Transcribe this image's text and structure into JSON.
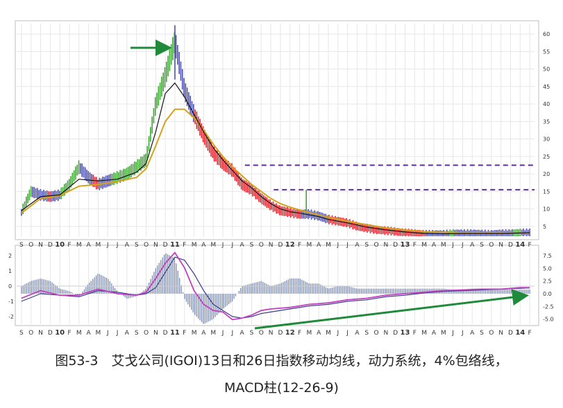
{
  "caption": {
    "line1": "图53-3　艾戈公司(IGOI)13日和26日指数移动均线，动力系统，4%包络线，",
    "line2": "MACD柱(12-26-9)"
  },
  "colors": {
    "up_bar": "#3fa535",
    "down_bar": "#e8202a",
    "neutral_bar": "#4b4fb0",
    "ema13": "#111111",
    "ema26": "#d4a21c",
    "macd_line": "#c040c0",
    "signal_line": "#3a3a8a",
    "histogram": "#7a8ab0",
    "resistance": "#5b2ca0",
    "arrow": "#1f8a3a",
    "grid": "#e6e6e6"
  },
  "chart_data": [
    {
      "type": "line",
      "panel": "price",
      "y_ticks": [
        "5",
        "10",
        "15",
        "20",
        "25",
        "30",
        "35",
        "40",
        "45",
        "50",
        "55",
        "60"
      ],
      "ylim": [
        2,
        63
      ],
      "x_months": [
        "S",
        "O",
        "N",
        "D",
        "10",
        "F",
        "M",
        "A",
        "M",
        "J",
        "J",
        "A",
        "S",
        "O",
        "N",
        "D",
        "11",
        "F",
        "M",
        "A",
        "M",
        "J",
        "J",
        "A",
        "S",
        "O",
        "N",
        "D",
        "12",
        "F",
        "M",
        "A",
        "M",
        "J",
        "J",
        "A",
        "S",
        "O",
        "N",
        "D",
        "13",
        "F",
        "M",
        "A",
        "M",
        "J",
        "J",
        "A",
        "S",
        "O",
        "N",
        "D",
        "14",
        "F"
      ],
      "price_path": [
        [
          0,
          9
        ],
        [
          1,
          15
        ],
        [
          2,
          14
        ],
        [
          3,
          13.5
        ],
        [
          4,
          14
        ],
        [
          5,
          17
        ],
        [
          6,
          22
        ],
        [
          7,
          19
        ],
        [
          8,
          17
        ],
        [
          9,
          18
        ],
        [
          10,
          19
        ],
        [
          11,
          20
        ],
        [
          12,
          22
        ],
        [
          13,
          24
        ],
        [
          14,
          40
        ],
        [
          15,
          48
        ],
        [
          16,
          58
        ],
        [
          17,
          44
        ],
        [
          18,
          37
        ],
        [
          19,
          31
        ],
        [
          20,
          26
        ],
        [
          21,
          23
        ],
        [
          22,
          21
        ],
        [
          23,
          17
        ],
        [
          24,
          15.5
        ],
        [
          25,
          13
        ],
        [
          26,
          11
        ],
        [
          27,
          9.5
        ],
        [
          28,
          9
        ],
        [
          29,
          8.5
        ],
        [
          30,
          8.5
        ],
        [
          31,
          8
        ],
        [
          32,
          7
        ],
        [
          33,
          6.5
        ],
        [
          34,
          6
        ],
        [
          35,
          5
        ],
        [
          36,
          4.5
        ],
        [
          37,
          4
        ],
        [
          38,
          3.8
        ],
        [
          39,
          3.5
        ],
        [
          40,
          3.2
        ],
        [
          41,
          3
        ],
        [
          42,
          2.8
        ],
        [
          43,
          2.8
        ],
        [
          44,
          2.8
        ],
        [
          45,
          3
        ],
        [
          46,
          3
        ],
        [
          47,
          3
        ],
        [
          48,
          2.9
        ],
        [
          49,
          2.8
        ],
        [
          50,
          3
        ],
        [
          51,
          3
        ],
        [
          52,
          3.2
        ],
        [
          53,
          3.2
        ]
      ],
      "ema13": [
        [
          0,
          9.5
        ],
        [
          2,
          13.5
        ],
        [
          4,
          14
        ],
        [
          6,
          18.5
        ],
        [
          8,
          18
        ],
        [
          10,
          18.5
        ],
        [
          12,
          20.5
        ],
        [
          13,
          23
        ],
        [
          14,
          32
        ],
        [
          15,
          43
        ],
        [
          16,
          46
        ],
        [
          17,
          42
        ],
        [
          18,
          37
        ],
        [
          19,
          32
        ],
        [
          20,
          27.5
        ],
        [
          21,
          24
        ],
        [
          22,
          21
        ],
        [
          23,
          18
        ],
        [
          24,
          16
        ],
        [
          25,
          13.5
        ],
        [
          26,
          11.5
        ],
        [
          27,
          10
        ],
        [
          28,
          9.2
        ],
        [
          29,
          8.8
        ],
        [
          30,
          8.3
        ],
        [
          31,
          7.8
        ],
        [
          32,
          7
        ],
        [
          34,
          6
        ],
        [
          36,
          4.8
        ],
        [
          38,
          4
        ],
        [
          40,
          3.4
        ],
        [
          42,
          3
        ],
        [
          44,
          2.9
        ],
        [
          46,
          3
        ],
        [
          48,
          3
        ],
        [
          50,
          3
        ],
        [
          52,
          3.1
        ],
        [
          53,
          3.2
        ]
      ],
      "ema26": [
        [
          0,
          8.8
        ],
        [
          2,
          13
        ],
        [
          4,
          13.8
        ],
        [
          6,
          16.5
        ],
        [
          8,
          17
        ],
        [
          10,
          17.8
        ],
        [
          12,
          19
        ],
        [
          13,
          21.5
        ],
        [
          14,
          28
        ],
        [
          15,
          35
        ],
        [
          16,
          38.5
        ],
        [
          17,
          38.5
        ],
        [
          18,
          36
        ],
        [
          19,
          32.5
        ],
        [
          20,
          28.5
        ],
        [
          21,
          25
        ],
        [
          22,
          22
        ],
        [
          23,
          19.5
        ],
        [
          24,
          17
        ],
        [
          25,
          15
        ],
        [
          26,
          13
        ],
        [
          27,
          11.5
        ],
        [
          28,
          10.5
        ],
        [
          29,
          9.7
        ],
        [
          30,
          9
        ],
        [
          31,
          8.3
        ],
        [
          32,
          7.6
        ],
        [
          34,
          6.5
        ],
        [
          36,
          5.5
        ],
        [
          38,
          4.6
        ],
        [
          40,
          4
        ],
        [
          42,
          3.5
        ],
        [
          44,
          3.3
        ],
        [
          46,
          3.2
        ],
        [
          48,
          3.2
        ],
        [
          50,
          3.2
        ],
        [
          52,
          3.2
        ],
        [
          53,
          3.2
        ]
      ],
      "resistance_levels": [
        22.5,
        15.5
      ],
      "series": [
        {
          "name": "",
          "role": "13-day EMA"
        },
        {
          "name": "",
          "role": "26-day EMA"
        }
      ]
    },
    {
      "type": "bar",
      "panel": "macd",
      "left_ticks": [
        "2",
        "1",
        "0",
        "-1",
        "-2"
      ],
      "right_ticks": [
        "7.5",
        "5.0",
        "2.5",
        "0.0",
        "-2.5",
        "-5.0"
      ],
      "hist_ylim": [
        -6,
        9
      ],
      "line_ylim": [
        -2.5,
        2.5
      ],
      "histogram": [
        [
          0,
          1.5
        ],
        [
          1,
          2.5
        ],
        [
          2,
          3
        ],
        [
          3,
          2.5
        ],
        [
          4,
          1
        ],
        [
          5,
          0.5
        ],
        [
          6,
          -0.5
        ],
        [
          7,
          2
        ],
        [
          8,
          4
        ],
        [
          9,
          3
        ],
        [
          10,
          0.5
        ],
        [
          11,
          -1
        ],
        [
          12,
          -0.5
        ],
        [
          13,
          1
        ],
        [
          14,
          5
        ],
        [
          15,
          8
        ],
        [
          16,
          7
        ],
        [
          17,
          -1
        ],
        [
          18,
          -4
        ],
        [
          19,
          -6
        ],
        [
          20,
          -5
        ],
        [
          21,
          -3
        ],
        [
          22,
          -1.5
        ],
        [
          23,
          1.5
        ],
        [
          24,
          2
        ],
        [
          25,
          2.5
        ],
        [
          26,
          1.5
        ],
        [
          27,
          2
        ],
        [
          28,
          3
        ],
        [
          29,
          3
        ],
        [
          30,
          2
        ],
        [
          31,
          2
        ],
        [
          32,
          1
        ],
        [
          33,
          1.5
        ],
        [
          34,
          1.5
        ],
        [
          35,
          1
        ],
        [
          36,
          1
        ],
        [
          37,
          1
        ],
        [
          38,
          1
        ],
        [
          39,
          1
        ],
        [
          40,
          1
        ],
        [
          41,
          1
        ],
        [
          42,
          1
        ],
        [
          43,
          1
        ],
        [
          44,
          1
        ],
        [
          45,
          0.8
        ],
        [
          46,
          0.8
        ],
        [
          47,
          1
        ],
        [
          48,
          1
        ],
        [
          49,
          0.8
        ],
        [
          50,
          1
        ],
        [
          51,
          0.8
        ],
        [
          52,
          0.8
        ],
        [
          53,
          0.8
        ]
      ],
      "macd_line": [
        [
          0,
          -0.8
        ],
        [
          2,
          -0.3
        ],
        [
          4,
          -0.6
        ],
        [
          6,
          -0.6
        ],
        [
          8,
          -0.2
        ],
        [
          10,
          -0.5
        ],
        [
          12,
          -0.6
        ],
        [
          13,
          -0.4
        ],
        [
          14,
          0.5
        ],
        [
          15,
          1.5
        ],
        [
          16,
          2.2
        ],
        [
          17,
          1.2
        ],
        [
          18,
          -0.3
        ],
        [
          19,
          -1.2
        ],
        [
          20,
          -1.6
        ],
        [
          21,
          -1.7
        ],
        [
          22,
          -2.2
        ],
        [
          23,
          -2.1
        ],
        [
          24,
          -1.9
        ],
        [
          25,
          -1.6
        ],
        [
          26,
          -1.5
        ],
        [
          28,
          -1.4
        ],
        [
          30,
          -1.2
        ],
        [
          32,
          -1.1
        ],
        [
          34,
          -0.9
        ],
        [
          36,
          -0.8
        ],
        [
          38,
          -0.6
        ],
        [
          40,
          -0.5
        ],
        [
          42,
          -0.4
        ],
        [
          44,
          -0.3
        ],
        [
          46,
          -0.25
        ],
        [
          48,
          -0.2
        ],
        [
          50,
          -0.2
        ],
        [
          52,
          -0.1
        ],
        [
          53,
          -0.1
        ]
      ],
      "signal_line": [
        [
          0,
          -1
        ],
        [
          2,
          -0.5
        ],
        [
          4,
          -0.6
        ],
        [
          6,
          -0.7
        ],
        [
          8,
          -0.3
        ],
        [
          10,
          -0.4
        ],
        [
          12,
          -0.6
        ],
        [
          13,
          -0.5
        ],
        [
          14,
          -0.1
        ],
        [
          15,
          0.9
        ],
        [
          16,
          1.9
        ],
        [
          17,
          1.7
        ],
        [
          18,
          0.8
        ],
        [
          19,
          -0.3
        ],
        [
          20,
          -1.2
        ],
        [
          21,
          -1.6
        ],
        [
          22,
          -2
        ],
        [
          23,
          -2.1
        ],
        [
          24,
          -2
        ],
        [
          25,
          -1.8
        ],
        [
          26,
          -1.7
        ],
        [
          28,
          -1.5
        ],
        [
          30,
          -1.3
        ],
        [
          32,
          -1.2
        ],
        [
          34,
          -1
        ],
        [
          36,
          -0.9
        ],
        [
          38,
          -0.7
        ],
        [
          40,
          -0.6
        ],
        [
          42,
          -0.45
        ],
        [
          44,
          -0.35
        ],
        [
          46,
          -0.3
        ],
        [
          48,
          -0.25
        ],
        [
          50,
          -0.2
        ],
        [
          52,
          -0.15
        ],
        [
          53,
          -0.12
        ]
      ]
    }
  ]
}
